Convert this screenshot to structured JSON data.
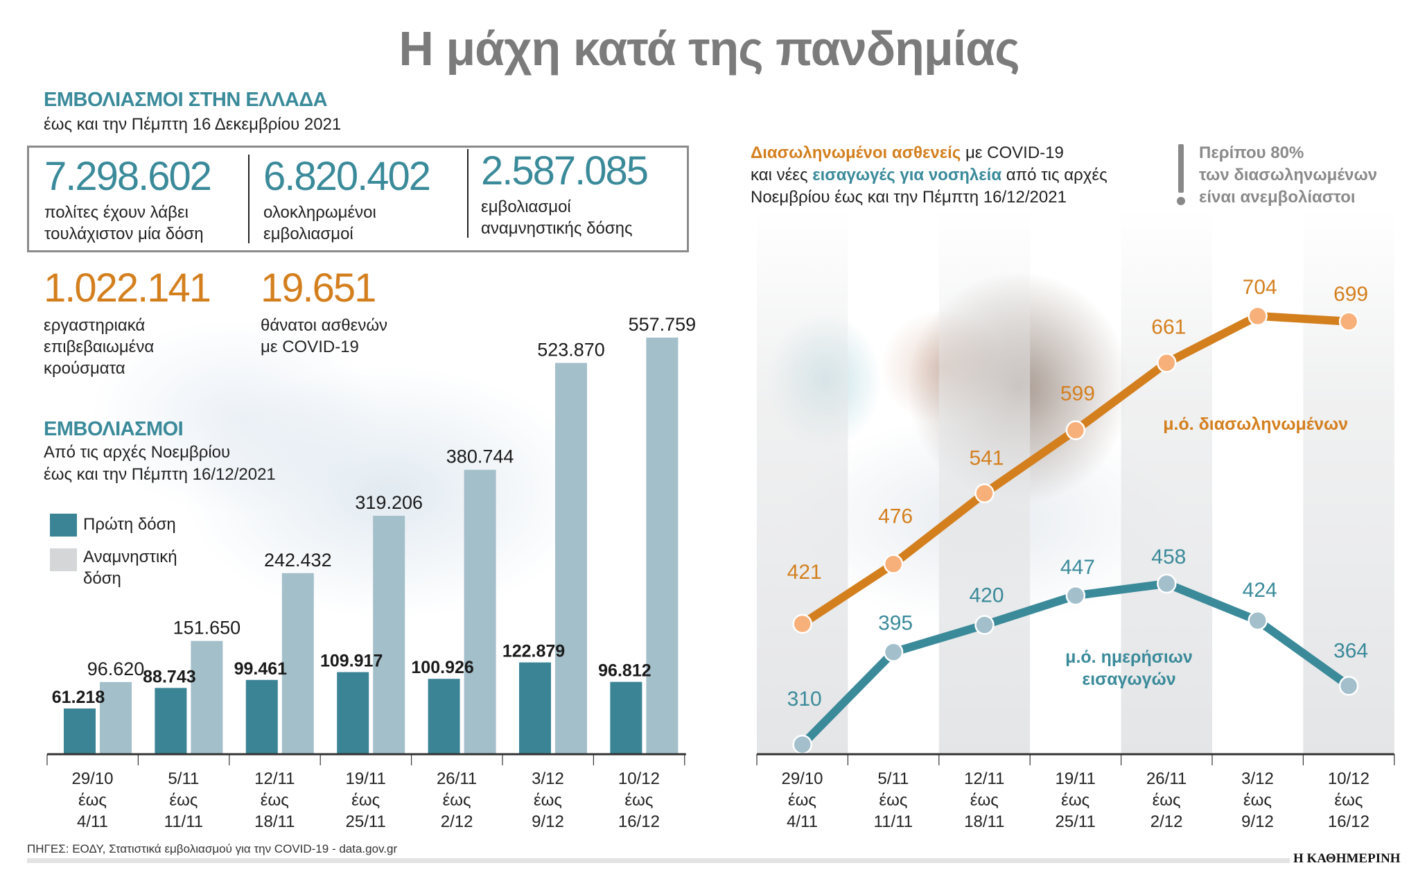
{
  "title": "Η μάχη κατά της πανδημίας",
  "greece": {
    "heading": "ΕΜΒΟΛΙΑΣΜΟΙ ΣΤΗΝ ΕΛΛΑΔΑ",
    "subheading": "έως και την Πέμπτη 16 Δεκεμβρίου 2021",
    "stats": [
      {
        "value": "7.298.602",
        "line1": "πολίτες έχουν λάβει",
        "line2": "τουλάχιστον μία δόση"
      },
      {
        "value": "6.820.402",
        "line1": "ολοκληρωμένοι",
        "line2": "εμβολιασμοί"
      },
      {
        "value": "2.587.085",
        "line1": "εμβολιασμοί",
        "line2": "αναμνηστικής δόσης"
      }
    ],
    "cases": {
      "value": "1.022.141",
      "line1": "εργαστηριακά",
      "line2": "επιβεβαιωμένα",
      "line3": "κρούσματα"
    },
    "deaths": {
      "value": "19.651",
      "line1": "θάνατοι ασθενών",
      "line2": "με COVID-19"
    }
  },
  "vaccination_chart": {
    "heading": "ΕΜΒΟΛΙΑΣΜΟΙ",
    "sub1": "Από τις αρχές Νοεμβρίου",
    "sub2": "έως και την Πέμπτη 16/12/2021",
    "legend": {
      "first": "Πρώτη δόση",
      "booster1": "Αναμνηστική",
      "booster2": "δόση"
    }
  },
  "hospital_chart": {
    "intro": {
      "bold_orange": "Διασωληνωμένοι ασθενείς",
      "t1": " με COVID-19",
      "t2": "και νέες ",
      "bold_teal": "εισαγωγές για νοσηλεία",
      "t3": " από τις αρχές",
      "t4": "Νοεμβρίου έως και την Πέμπτη 16/12/2021"
    },
    "note": {
      "line1": "Περίπου 80%",
      "line2": "των διασωληνωμένων",
      "line3": "είναι ανεμβολίαστοι"
    },
    "orange_label": "μ.ό. διασωληνωμένων",
    "teal_label1": "μ.ό. ημερήσιων",
    "teal_label2": "εισαγωγών"
  },
  "categories": [
    {
      "from": "29/10",
      "to": "4/11"
    },
    {
      "from": "5/11",
      "to": "11/11"
    },
    {
      "from": "12/11",
      "to": "18/11"
    },
    {
      "from": "19/11",
      "to": "25/11"
    },
    {
      "from": "26/11",
      "to": "2/12"
    },
    {
      "from": "3/12",
      "to": "9/12"
    },
    {
      "from": "10/12",
      "to": "16/12"
    }
  ],
  "until_word": "έως",
  "chart_data": [
    {
      "type": "bar",
      "categories": [
        "29/10 έως 4/11",
        "5/11 έως 11/11",
        "12/11 έως 18/11",
        "19/11 έως 25/11",
        "26/11 έως 2/12",
        "3/12 έως 9/12",
        "10/12 έως 16/12"
      ],
      "series": [
        {
          "name": "Πρώτη δόση",
          "values": [
            61218,
            88743,
            99461,
            109917,
            100926,
            122879,
            96812
          ],
          "labels": [
            "61.218",
            "88.743",
            "99.461",
            "109.917",
            "100.926",
            "122.879",
            "96.812"
          ],
          "color": "#3a8496"
        },
        {
          "name": "Αναμνηστική δόση",
          "values": [
            96620,
            151650,
            242432,
            319206,
            380744,
            523870,
            557759
          ],
          "labels": [
            "96.620",
            "151.650",
            "242.432",
            "319.206",
            "380.744",
            "523.870",
            "557.759"
          ],
          "color": "#a3bfca"
        }
      ],
      "grid": false
    },
    {
      "type": "line",
      "categories": [
        "29/10 έως 4/11",
        "5/11 έως 11/11",
        "12/11 έως 18/11",
        "19/11 έως 25/11",
        "26/11 έως 2/12",
        "3/12 έως 9/12",
        "10/12 έως 16/12"
      ],
      "series": [
        {
          "name": "μ.ό. διασωληνωμένων",
          "values": [
            421,
            476,
            541,
            599,
            661,
            704,
            699
          ],
          "color": "#d47f1e"
        },
        {
          "name": "μ.ό. ημερήσιων εισαγωγών",
          "values": [
            310,
            395,
            420,
            447,
            458,
            424,
            364
          ],
          "color": "#3a8a9a"
        }
      ],
      "grid": false
    }
  ],
  "footer": {
    "source": "ΠΗΓΕΣ: ΕΟΔΥ, Στατιστικά εμβολιασμού για την COVID-19 - data.gov.gr",
    "brand": "Η ΚΑΘΗΜΕΡΙΝΗ"
  }
}
